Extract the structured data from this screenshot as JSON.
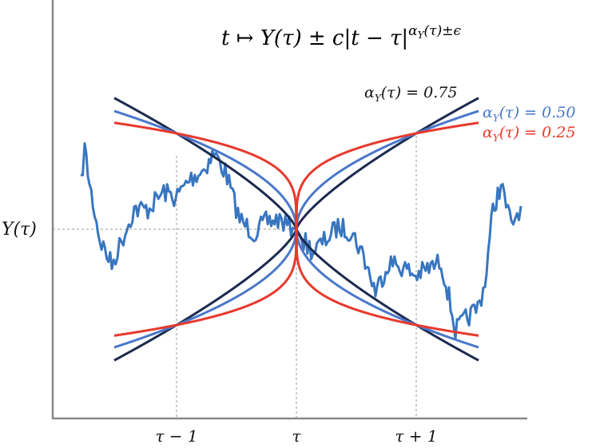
{
  "formula": "t ↦ Y(τ) ± c|t − τ|^{α_Y(τ)±ε}",
  "formula_parts": {
    "base": "t ↦ Y(τ) ± c|t − τ|",
    "exponent": "α",
    "exponent_sub": "Y",
    "exponent_rest": "(τ)±ϵ"
  },
  "y_axis_label": "Y(τ)",
  "x_ticks": [
    "τ − 1",
    "τ",
    "τ + 1"
  ],
  "curves": [
    {
      "label": "α_Y(τ) = 0.75",
      "alpha": 0.75,
      "color": "#1b2a4e",
      "lab": {
        "pre": "α",
        "sub": "Y",
        "post": "(τ) = 0.75"
      }
    },
    {
      "label": "α_Y(τ) = 0.50",
      "alpha": 0.5,
      "color": "#4a78c9",
      "lab": {
        "pre": "α",
        "sub": "Y",
        "post": "(τ) = 0.50"
      }
    },
    {
      "label": "α_Y(τ) = 0.25",
      "alpha": 0.25,
      "color": "#e8392d",
      "lab": {
        "pre": "α",
        "sub": "Y",
        "post": "(τ) = 0.25"
      }
    }
  ],
  "path_color": "#3876c0",
  "path_seed": 7
}
